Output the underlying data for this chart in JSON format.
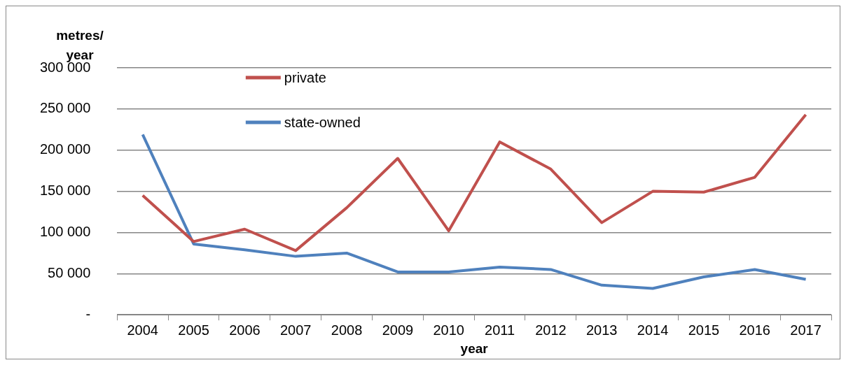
{
  "chart_data": {
    "type": "line",
    "xlabel": "year",
    "ylabel": "metres/ year",
    "categories": [
      "2004",
      "2005",
      "2006",
      "2007",
      "2008",
      "2009",
      "2010",
      "2011",
      "2012",
      "2013",
      "2014",
      "2015",
      "2016",
      "2017"
    ],
    "series": [
      {
        "name": "private",
        "color": "#c0504d",
        "values": [
          145000,
          89000,
          104000,
          78000,
          130000,
          190000,
          102000,
          210000,
          177000,
          112000,
          150000,
          149000,
          167000,
          243000
        ]
      },
      {
        "name": "state-owned",
        "color": "#4f81bd",
        "values": [
          219000,
          86000,
          79000,
          71000,
          75000,
          52000,
          52000,
          58000,
          55000,
          36000,
          32000,
          46000,
          55000,
          43000
        ]
      }
    ],
    "ylim": [
      0,
      300000
    ],
    "yticks": [
      {
        "value": 0,
        "label": "-"
      },
      {
        "value": 50000,
        "label": "50 000"
      },
      {
        "value": 100000,
        "label": "100 000"
      },
      {
        "value": 150000,
        "label": "150 000"
      },
      {
        "value": 200000,
        "label": "200 000"
      },
      {
        "value": 250000,
        "label": "250 000"
      },
      {
        "value": 300000,
        "label": "300 000"
      }
    ],
    "grid": "y",
    "legend": "top",
    "marker": "none",
    "line_style": "solid"
  }
}
